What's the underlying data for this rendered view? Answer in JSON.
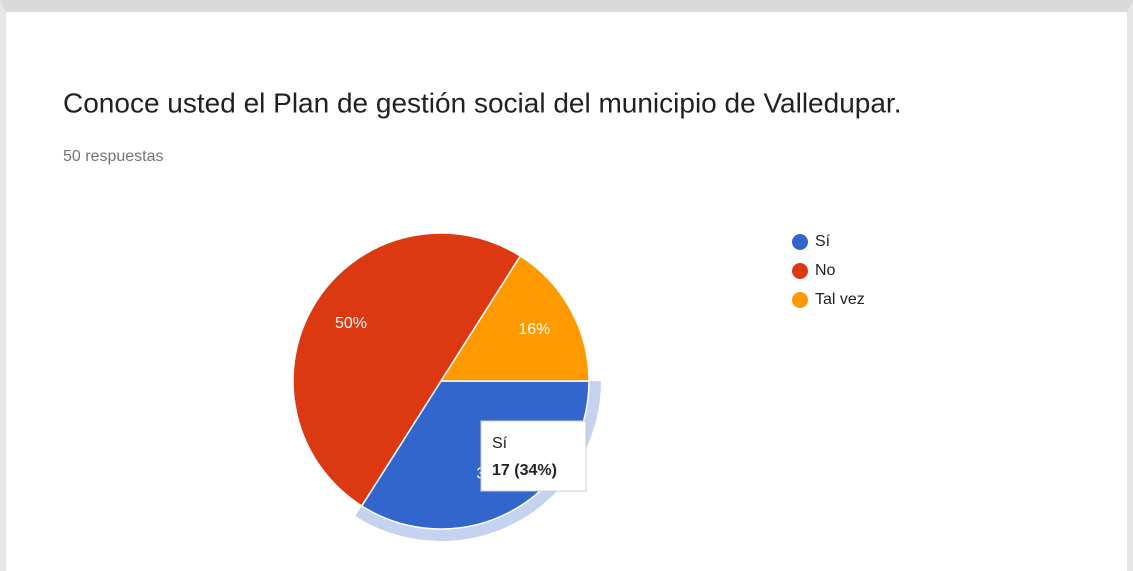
{
  "chart_data": {
    "type": "pie",
    "title": "Conoce usted el Plan de gestión social del municipio de Valledupar.",
    "subtitle": "50 respuestas",
    "categories": [
      "Sí",
      "No",
      "Tal vez"
    ],
    "values": [
      34,
      50,
      16
    ],
    "value_labels": [
      "34%",
      "50%",
      "16%"
    ],
    "colors": [
      "#3366cc",
      "#dc3912",
      "#ff9900"
    ],
    "legend": "right",
    "tooltip": {
      "title": "Sí",
      "text": "17 (34%)"
    }
  }
}
